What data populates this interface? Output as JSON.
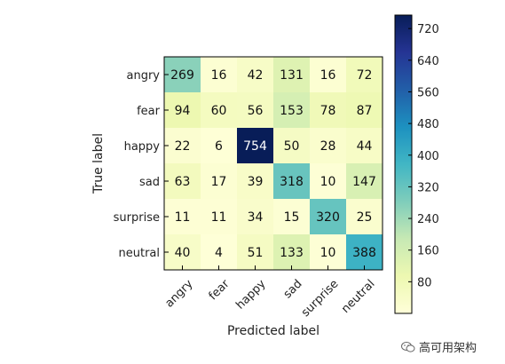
{
  "chart_data": {
    "type": "heatmap",
    "title": "",
    "xlabel": "Predicted label",
    "ylabel": "True label",
    "x_categories": [
      "angry",
      "fear",
      "happy",
      "sad",
      "surprise",
      "neutral"
    ],
    "y_categories": [
      "angry",
      "fear",
      "happy",
      "sad",
      "surprise",
      "neutral"
    ],
    "values": [
      [
        269,
        16,
        42,
        131,
        16,
        72
      ],
      [
        94,
        60,
        56,
        153,
        78,
        87
      ],
      [
        22,
        6,
        754,
        50,
        28,
        44
      ],
      [
        63,
        17,
        39,
        318,
        10,
        147
      ],
      [
        11,
        11,
        34,
        15,
        320,
        25
      ],
      [
        40,
        4,
        51,
        133,
        10,
        388
      ]
    ],
    "colormap": "YlGnBu",
    "colorbar": {
      "range": [
        0,
        754
      ],
      "ticks": [
        80,
        160,
        240,
        320,
        400,
        480,
        560,
        640,
        720
      ]
    }
  },
  "watermark": {
    "text": "高可用架构",
    "icon": "wechat-icon"
  }
}
